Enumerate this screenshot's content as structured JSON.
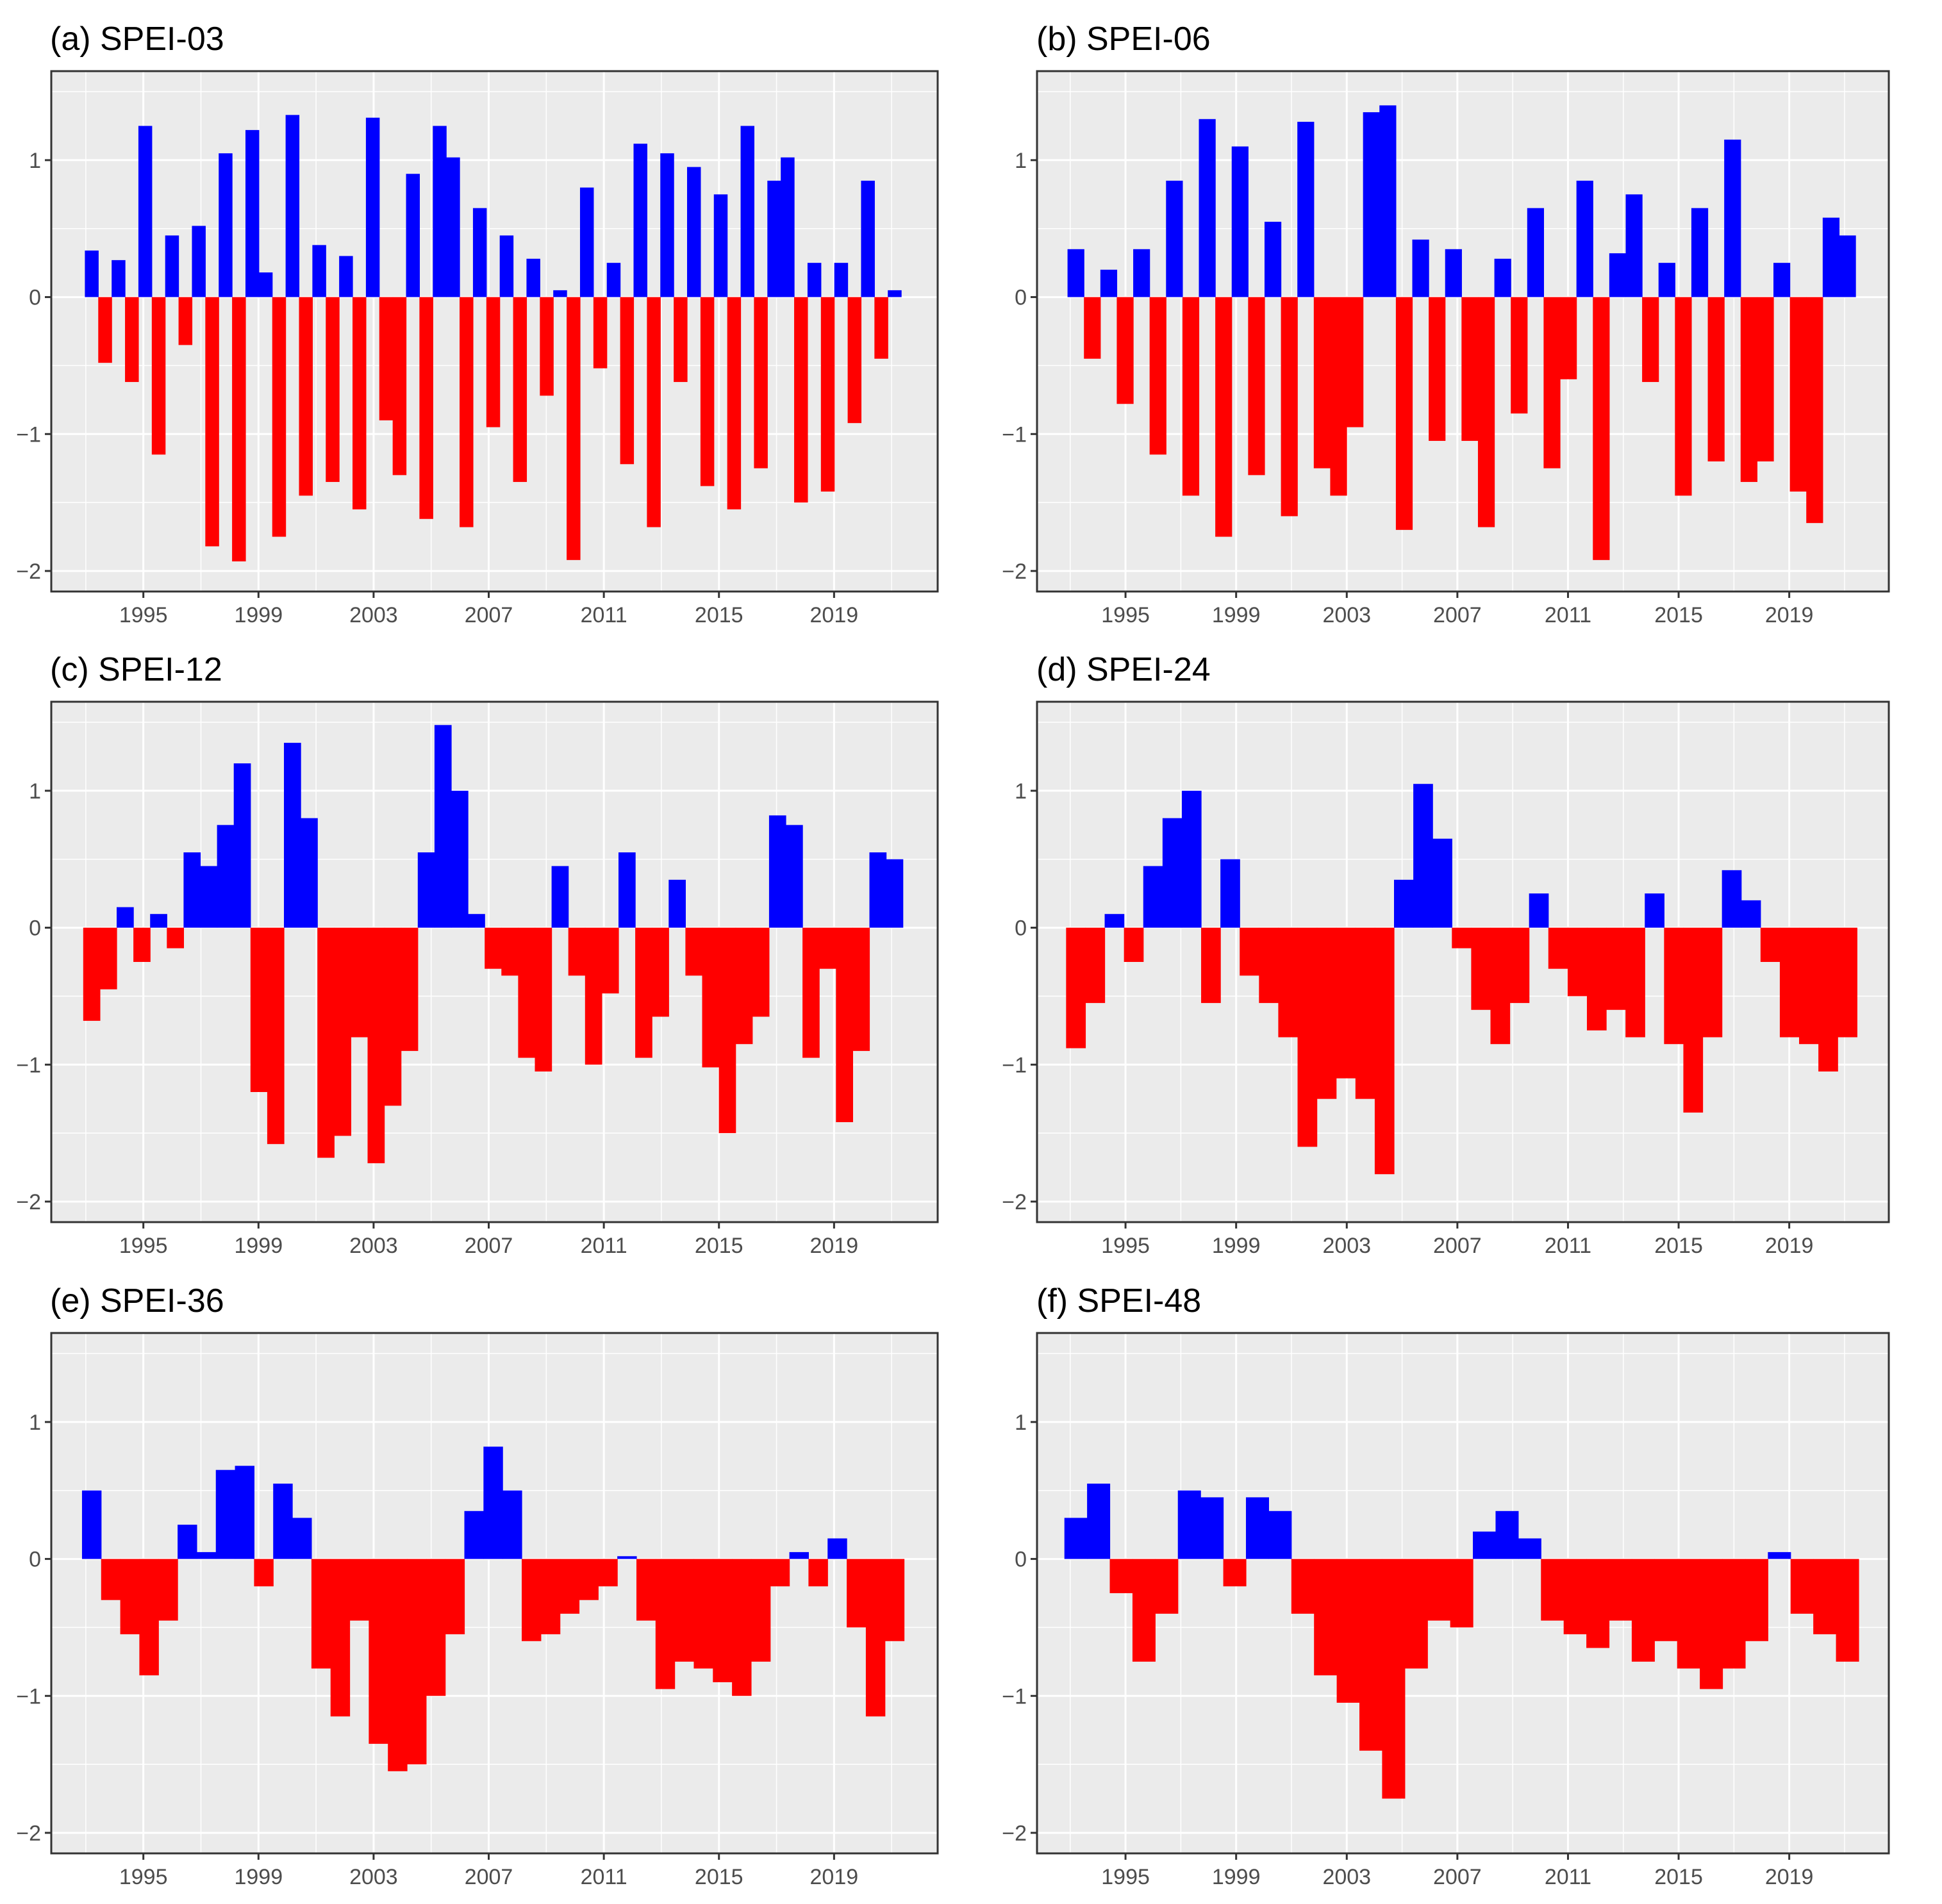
{
  "colors": {
    "positive": "#0000ff",
    "negative": "#ff0000",
    "panel_background": "#ebebeb",
    "grid": "#ffffff"
  },
  "chart_data": [
    {
      "type": "bar",
      "title": "(a)  SPEI-03",
      "xlabel": "",
      "ylabel": "",
      "xlim": [
        1991.8,
        2022.6
      ],
      "ylim": [
        -2.15,
        1.65
      ],
      "x_ticks": [
        1995,
        1999,
        2003,
        2007,
        2011,
        2015,
        2019
      ],
      "y_ticks": [
        -2,
        -1,
        0,
        1
      ],
      "series_x_start": 1993.2,
      "series_x_end": 2021.1,
      "values": [
        0.34,
        -0.48,
        0.27,
        -0.62,
        1.25,
        -1.15,
        0.45,
        -0.35,
        0.52,
        -1.82,
        1.05,
        -1.93,
        1.22,
        0.18,
        -1.75,
        1.33,
        -1.45,
        0.38,
        -1.35,
        0.3,
        -1.55,
        1.31,
        -0.9,
        -1.3,
        0.9,
        -1.62,
        1.25,
        1.02,
        -1.68,
        0.65,
        -0.95,
        0.45,
        -1.35,
        0.28,
        -0.72,
        0.05,
        -1.92,
        0.8,
        -0.52,
        0.25,
        -1.22,
        1.12,
        -1.68,
        1.05,
        -0.62,
        0.95,
        -1.38,
        0.75,
        -1.55,
        1.25,
        -1.25,
        0.85,
        1.02,
        -1.5,
        0.25,
        -1.42,
        0.25,
        -0.92,
        0.85,
        -0.45,
        0.05
      ]
    },
    {
      "type": "bar",
      "title": "(b)  SPEI-06",
      "xlabel": "",
      "ylabel": "",
      "xlim": [
        1991.8,
        2022.6
      ],
      "ylim": [
        -2.15,
        1.65
      ],
      "x_ticks": [
        1995,
        1999,
        2003,
        2007,
        2011,
        2015,
        2019
      ],
      "y_ticks": [
        -2,
        -1,
        0,
        1
      ],
      "series_x_start": 1993.2,
      "series_x_end": 2021.1,
      "values": [
        0.35,
        -0.45,
        0.2,
        -0.78,
        0.35,
        -1.15,
        0.85,
        -1.45,
        1.3,
        -1.75,
        1.1,
        -1.3,
        0.55,
        -1.6,
        1.28,
        -1.25,
        -1.45,
        -0.95,
        1.35,
        1.4,
        -1.7,
        0.42,
        -1.05,
        0.35,
        -1.05,
        -1.68,
        0.28,
        -0.85,
        0.65,
        -1.25,
        -0.6,
        0.85,
        -1.92,
        0.32,
        0.75,
        -0.62,
        0.25,
        -1.45,
        0.65,
        -1.2,
        1.15,
        -1.35,
        -1.2,
        0.25,
        -1.42,
        -1.65,
        0.58,
        0.45
      ]
    },
    {
      "type": "bar",
      "title": "(c)  SPEI-12",
      "xlabel": "",
      "ylabel": "",
      "xlim": [
        1991.8,
        2022.6
      ],
      "ylim": [
        -2.15,
        1.65
      ],
      "x_ticks": [
        1995,
        1999,
        2003,
        2007,
        2011,
        2015,
        2019
      ],
      "y_ticks": [
        -2,
        -1,
        0,
        1
      ],
      "series_x_start": 1993.2,
      "series_x_end": 2021.1,
      "values": [
        -0.68,
        -0.45,
        0.15,
        -0.25,
        0.1,
        -0.15,
        0.55,
        0.45,
        0.75,
        1.2,
        -1.2,
        -1.58,
        1.35,
        0.8,
        -1.68,
        -1.52,
        -0.8,
        -1.72,
        -1.3,
        -0.9,
        0.55,
        1.48,
        1.0,
        0.1,
        -0.3,
        -0.35,
        -0.95,
        -1.05,
        0.45,
        -0.35,
        -1.0,
        -0.48,
        0.55,
        -0.95,
        -0.65,
        0.35,
        -0.35,
        -1.02,
        -1.5,
        -0.85,
        -0.65,
        0.82,
        0.75,
        -0.95,
        -0.3,
        -1.42,
        -0.9,
        0.55,
        0.5
      ]
    },
    {
      "type": "bar",
      "title": "(d)  SPEI-24",
      "xlabel": "",
      "ylabel": "",
      "xlim": [
        1991.8,
        2022.6
      ],
      "ylim": [
        -2.15,
        1.65
      ],
      "x_ticks": [
        1995,
        1999,
        2003,
        2007,
        2011,
        2015,
        2019
      ],
      "y_ticks": [
        -2,
        -1,
        0,
        1
      ],
      "series_x_start": 1993.2,
      "series_x_end": 2021.1,
      "values": [
        -0.88,
        -0.55,
        0.1,
        -0.25,
        0.45,
        0.8,
        1.0,
        -0.55,
        0.5,
        -0.35,
        -0.55,
        -0.8,
        -1.6,
        -1.25,
        -1.1,
        -1.25,
        -1.8,
        0.35,
        1.05,
        0.65,
        -0.15,
        -0.6,
        -0.85,
        -0.55,
        0.25,
        -0.3,
        -0.5,
        -0.75,
        -0.6,
        -0.8,
        0.25,
        -0.85,
        -1.35,
        -0.8,
        0.42,
        0.2,
        -0.25,
        -0.8,
        -0.85,
        -1.05,
        -0.8
      ]
    },
    {
      "type": "bar",
      "title": "(e)  SPEI-36",
      "xlabel": "",
      "ylabel": "",
      "xlim": [
        1991.8,
        2022.6
      ],
      "ylim": [
        -2.15,
        1.65
      ],
      "x_ticks": [
        1995,
        1999,
        2003,
        2007,
        2011,
        2015,
        2019
      ],
      "y_ticks": [
        -2,
        -1,
        0,
        1
      ],
      "series_x_start": 1993.2,
      "series_x_end": 2021.1,
      "values": [
        0.5,
        -0.3,
        -0.55,
        -0.85,
        -0.45,
        0.25,
        0.05,
        0.65,
        0.68,
        -0.2,
        0.55,
        0.3,
        -0.8,
        -1.15,
        -0.45,
        -1.35,
        -1.55,
        -1.5,
        -1.0,
        -0.55,
        0.35,
        0.82,
        0.5,
        -0.6,
        -0.55,
        -0.4,
        -0.3,
        -0.2,
        0.02,
        -0.45,
        -0.95,
        -0.75,
        -0.8,
        -0.9,
        -1.0,
        -0.75,
        -0.2,
        0.05,
        -0.2,
        0.15,
        -0.5,
        -1.15,
        -0.6
      ]
    },
    {
      "type": "bar",
      "title": "(f)  SPEI-48",
      "xlabel": "",
      "ylabel": "",
      "xlim": [
        1991.8,
        2022.6
      ],
      "ylim": [
        -2.15,
        1.65
      ],
      "x_ticks": [
        1995,
        1999,
        2003,
        2007,
        2011,
        2015,
        2019
      ],
      "y_ticks": [
        -2,
        -1,
        0,
        1
      ],
      "series_x_start": 1993.2,
      "series_x_end": 2021.1,
      "values": [
        0.3,
        0.55,
        -0.25,
        -0.75,
        -0.4,
        0.5,
        0.45,
        -0.2,
        0.45,
        0.35,
        -0.4,
        -0.85,
        -1.05,
        -1.4,
        -1.75,
        -0.8,
        -0.45,
        -0.5,
        0.2,
        0.35,
        0.15,
        -0.45,
        -0.55,
        -0.65,
        -0.45,
        -0.75,
        -0.6,
        -0.8,
        -0.95,
        -0.8,
        -0.6,
        0.05,
        -0.4,
        -0.55,
        -0.75
      ]
    }
  ]
}
